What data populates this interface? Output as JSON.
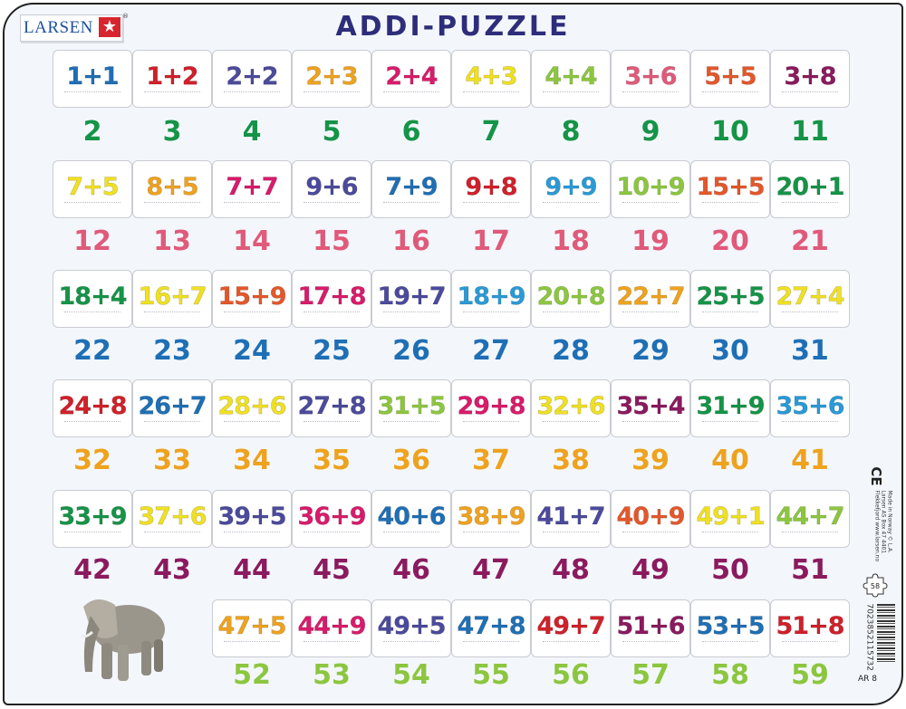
{
  "brand": "LARSEN",
  "registered": "®",
  "title": "ADDI-PUZZLE",
  "colors": {
    "blue": "#1f6fb5",
    "red": "#d0202a",
    "purple": "#4b4a9c",
    "orange": "#eea21e",
    "magenta": "#d81b6a",
    "yellow": "#efe022",
    "lightgreen": "#8cc63f",
    "pink": "#e05a7a",
    "orangered": "#e4572b",
    "plum": "#8b1a5e",
    "green": "#159447",
    "lightblue": "#2a9ad6"
  },
  "rows": [
    {
      "start_col": 0,
      "answer_color": "green",
      "pieces": [
        [
          "1+1",
          "blue"
        ],
        [
          "1+2",
          "red"
        ],
        [
          "2+2",
          "purple"
        ],
        [
          "2+3",
          "orange"
        ],
        [
          "2+4",
          "magenta"
        ],
        [
          "4+3",
          "yellow"
        ],
        [
          "4+4",
          "lightgreen"
        ],
        [
          "3+6",
          "pink"
        ],
        [
          "5+5",
          "orangered"
        ],
        [
          "3+8",
          "plum"
        ]
      ],
      "answers": [
        "2",
        "3",
        "4",
        "5",
        "6",
        "7",
        "8",
        "9",
        "10",
        "11"
      ]
    },
    {
      "start_col": 0,
      "answer_color": "pink",
      "pieces": [
        [
          "7+5",
          "yellow"
        ],
        [
          "8+5",
          "orange"
        ],
        [
          "7+7",
          "magenta"
        ],
        [
          "9+6",
          "purple"
        ],
        [
          "7+9",
          "blue"
        ],
        [
          "9+8",
          "red"
        ],
        [
          "9+9",
          "lightblue"
        ],
        [
          "10+9",
          "lightgreen"
        ],
        [
          "15+5",
          "orangered"
        ],
        [
          "20+1",
          "green"
        ]
      ],
      "answers": [
        "12",
        "13",
        "14",
        "15",
        "16",
        "17",
        "18",
        "19",
        "20",
        "21"
      ]
    },
    {
      "start_col": 0,
      "answer_color": "blue",
      "pieces": [
        [
          "18+4",
          "green"
        ],
        [
          "16+7",
          "yellow"
        ],
        [
          "15+9",
          "orangered"
        ],
        [
          "17+8",
          "magenta"
        ],
        [
          "19+7",
          "purple"
        ],
        [
          "18+9",
          "lightblue"
        ],
        [
          "20+8",
          "lightgreen"
        ],
        [
          "22+7",
          "orange"
        ],
        [
          "25+5",
          "green"
        ],
        [
          "27+4",
          "yellow"
        ]
      ],
      "answers": [
        "22",
        "23",
        "24",
        "25",
        "26",
        "27",
        "28",
        "29",
        "30",
        "31"
      ]
    },
    {
      "start_col": 0,
      "answer_color": "orange",
      "pieces": [
        [
          "24+8",
          "red"
        ],
        [
          "26+7",
          "blue"
        ],
        [
          "28+6",
          "yellow"
        ],
        [
          "27+8",
          "purple"
        ],
        [
          "31+5",
          "lightgreen"
        ],
        [
          "29+8",
          "magenta"
        ],
        [
          "32+6",
          "yellow"
        ],
        [
          "35+4",
          "plum"
        ],
        [
          "31+9",
          "green"
        ],
        [
          "35+6",
          "lightblue"
        ]
      ],
      "answers": [
        "32",
        "33",
        "34",
        "35",
        "36",
        "37",
        "38",
        "39",
        "40",
        "41"
      ]
    },
    {
      "start_col": 0,
      "answer_color": "plum",
      "pieces": [
        [
          "33+9",
          "green"
        ],
        [
          "37+6",
          "yellow"
        ],
        [
          "39+5",
          "purple"
        ],
        [
          "36+9",
          "magenta"
        ],
        [
          "40+6",
          "blue"
        ],
        [
          "38+9",
          "orange"
        ],
        [
          "41+7",
          "purple"
        ],
        [
          "40+9",
          "orangered"
        ],
        [
          "49+1",
          "yellow"
        ],
        [
          "44+7",
          "lightgreen"
        ]
      ],
      "answers": [
        "42",
        "43",
        "44",
        "45",
        "46",
        "47",
        "48",
        "49",
        "50",
        "51"
      ]
    },
    {
      "start_col": 2,
      "answer_color": "lightgreen",
      "pieces": [
        [
          "47+5",
          "orange"
        ],
        [
          "44+9",
          "magenta"
        ],
        [
          "49+5",
          "purple"
        ],
        [
          "47+8",
          "blue"
        ],
        [
          "49+7",
          "red"
        ],
        [
          "51+6",
          "plum"
        ],
        [
          "53+5",
          "blue"
        ],
        [
          "51+8",
          "red"
        ]
      ],
      "answers": [
        "52",
        "53",
        "54",
        "55",
        "56",
        "57",
        "58",
        "59"
      ]
    }
  ],
  "side": {
    "ce_mark": "CE",
    "info": "Made in Norway © L.A. Larsen AS Box 47 4401 Flekkefjord www.larsen.no",
    "puzzle_count": "58",
    "barcode_number": "7023852115732",
    "product_code": "AR 8"
  }
}
